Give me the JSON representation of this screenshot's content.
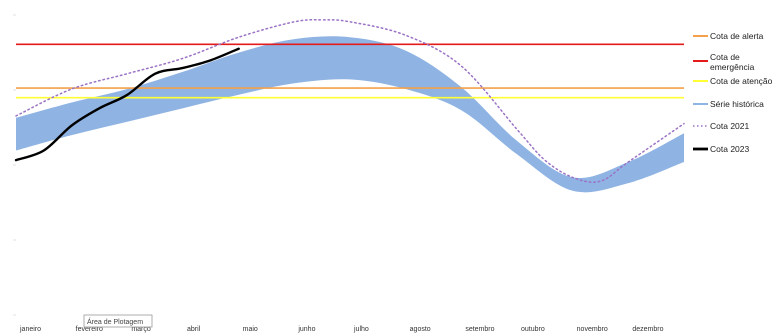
{
  "chart_data": {
    "type": "line",
    "x_unit": "month",
    "months": [
      "janeiro",
      "fevereiro",
      "março",
      "abril",
      "maio",
      "junho",
      "julho",
      "agosto",
      "setembro",
      "outubro",
      "novembro",
      "dezembro"
    ],
    "xlim": [
      0,
      12
    ],
    "ylim": [
      0,
      1
    ],
    "grid": false,
    "legend_placement": "right",
    "thresholds": [
      {
        "name": "Cota de alerta",
        "value": 0.635,
        "color": "#f4a14a"
      },
      {
        "name": "Cota de emergência",
        "value": 0.863,
        "color": "#e31b1b"
      },
      {
        "name": "Cota de atenção",
        "value": 0.585,
        "color": "#ffff33"
      }
    ],
    "historical_band": {
      "name": "Série histórica",
      "color": "#8fb4e3",
      "x": [
        0,
        1,
        2,
        3,
        4,
        5,
        6,
        7,
        8,
        9,
        10,
        11,
        12
      ],
      "low": [
        0.31,
        0.39,
        0.46,
        0.53,
        0.6,
        0.66,
        0.68,
        0.63,
        0.52,
        0.29,
        0.1,
        0.14,
        0.25
      ],
      "high": [
        0.48,
        0.56,
        0.63,
        0.72,
        0.82,
        0.89,
        0.9,
        0.83,
        0.64,
        0.36,
        0.17,
        0.25,
        0.4
      ]
    },
    "series": [
      {
        "name": "Cota 2021",
        "style": "dotted",
        "color": "#9b72c6",
        "x": [
          0,
          1,
          2,
          3,
          4,
          5,
          5.5,
          6,
          7,
          8,
          9,
          9.5,
          10,
          10.5,
          11,
          12
        ],
        "y": [
          0.49,
          0.63,
          0.71,
          0.79,
          0.9,
          0.98,
          0.99,
          0.98,
          0.91,
          0.75,
          0.42,
          0.26,
          0.17,
          0.15,
          0.25,
          0.45
        ]
      },
      {
        "name": "Cota 2023",
        "style": "solid",
        "color": "#000000",
        "x": [
          0,
          0.5,
          1,
          1.5,
          2,
          2.5,
          3,
          3.5,
          4
        ],
        "y": [
          0.26,
          0.31,
          0.44,
          0.53,
          0.6,
          0.71,
          0.74,
          0.78,
          0.84
        ]
      }
    ]
  },
  "tooltip": {
    "label": "Área de Plotagem"
  }
}
